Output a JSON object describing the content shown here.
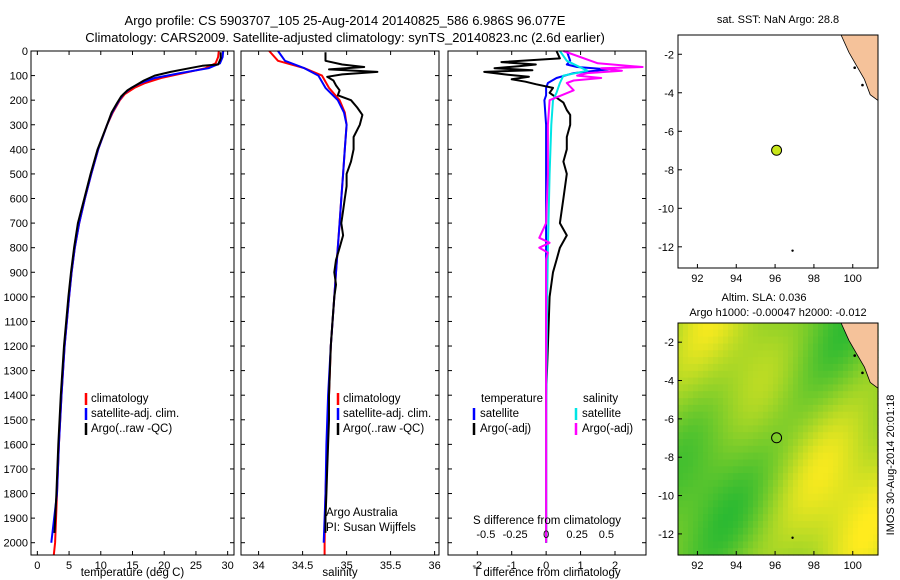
{
  "title": {
    "line1": "Argo profile: CS 5903707_105 25-Aug-2014 20140825_586 6.986S 96.077E",
    "line2": "Climatology: CARS2009. Satellite-adjusted climatology: synTS_20140823.nc (2.6d earlier)"
  },
  "depth_axis": {
    "min": 0,
    "max": 2050,
    "ticks": [
      0,
      100,
      200,
      300,
      400,
      500,
      600,
      700,
      800,
      900,
      1000,
      1100,
      1200,
      1300,
      1400,
      1500,
      1600,
      1700,
      1800,
      1900,
      2000
    ]
  },
  "colors": {
    "climatology": "#ff0000",
    "satellite": "#0000ff",
    "argo": "#000000",
    "salinity_sat": "#00e5e5",
    "salinity_argo": "#ff00ff",
    "land": "#f5c29a"
  },
  "chart_data": [
    {
      "type": "line",
      "name": "temperature-panel",
      "xlabel": "temperature (deg C)",
      "xlim": [
        -1,
        31
      ],
      "xticks": [
        0,
        5,
        10,
        15,
        20,
        25,
        30
      ],
      "ylim": [
        2050,
        0
      ],
      "legend": [
        "climatology",
        "satellite-adj. clim.",
        "Argo(..raw -QC)"
      ],
      "legend_position": "lower-center",
      "series": [
        {
          "name": "climatology",
          "depth": [
            0,
            25,
            50,
            70,
            90,
            110,
            130,
            150,
            175,
            200,
            250,
            300,
            400,
            500,
            600,
            700,
            800,
            900,
            1000,
            1200,
            1400,
            1600,
            1800,
            2000,
            2050
          ],
          "values": [
            28.6,
            28.5,
            28.1,
            26.5,
            23,
            19.5,
            17,
            15.3,
            13.8,
            13,
            11.9,
            11,
            9.6,
            8.5,
            7.5,
            6.6,
            5.9,
            5.4,
            5,
            4.3,
            3.8,
            3.4,
            3.1,
            2.8,
            2.6
          ]
        },
        {
          "name": "satellite-adj. clim.",
          "depth": [
            0,
            25,
            50,
            70,
            90,
            110,
            130,
            150,
            175,
            200,
            250,
            300,
            400,
            500,
            600,
            700,
            800,
            900,
            1000,
            1200,
            1400,
            1600,
            1800,
            2000
          ],
          "values": [
            29.3,
            29.2,
            28.8,
            27,
            22.5,
            18.5,
            16.3,
            14.8,
            13.6,
            12.9,
            11.8,
            11,
            9.6,
            8.5,
            7.5,
            6.6,
            5.9,
            5.4,
            5,
            4.3,
            3.8,
            3.4,
            3.1,
            2.2
          ]
        },
        {
          "name": "Argo(..raw -QC)",
          "depth": [
            5,
            30,
            55,
            60,
            70,
            85,
            100,
            120,
            140,
            160,
            185,
            210,
            250,
            300,
            400,
            500,
            600,
            700,
            800,
            900,
            1000,
            1200,
            1400,
            1600,
            1800,
            1960
          ],
          "values": [
            28.9,
            28.9,
            28.5,
            26,
            24,
            21,
            18.5,
            16.8,
            15.5,
            14.2,
            13.2,
            12.6,
            11.7,
            11,
            9.5,
            8.4,
            7.4,
            6.4,
            5.8,
            5.3,
            4.9,
            4.2,
            3.7,
            3.3,
            3,
            2.7
          ]
        }
      ]
    },
    {
      "type": "line",
      "name": "salinity-panel",
      "xlabel": "salinity",
      "xlim": [
        33.8,
        36.05
      ],
      "xticks": [
        34,
        34.5,
        35,
        35.5,
        36
      ],
      "ylim": [
        2050,
        0
      ],
      "legend": [
        "climatology",
        "satellite-adj. clim.",
        "Argo(..raw -QC)"
      ],
      "legend_position": "lower-right",
      "annotations": [
        "Argo Australia",
        "PI: Susan Wijffels"
      ],
      "series": [
        {
          "name": "climatology",
          "depth": [
            0,
            40,
            70,
            100,
            150,
            200,
            250,
            300,
            400,
            500,
            600,
            700,
            800,
            900,
            1000,
            1200,
            1400,
            1600,
            1800,
            2000,
            2050
          ],
          "values": [
            34.12,
            34.22,
            34.52,
            34.72,
            34.8,
            34.92,
            34.98,
            35.0,
            34.98,
            34.96,
            34.94,
            34.92,
            34.9,
            34.88,
            34.86,
            34.82,
            34.8,
            34.78,
            34.76,
            34.75,
            34.75
          ]
        },
        {
          "name": "satellite-adj. clim.",
          "depth": [
            0,
            40,
            70,
            100,
            150,
            200,
            250,
            300,
            400,
            500,
            600,
            700,
            800,
            900,
            1000,
            1200,
            1400,
            1600,
            1800,
            2000
          ],
          "values": [
            34.22,
            34.3,
            34.52,
            34.68,
            34.76,
            34.9,
            34.97,
            35.0,
            34.98,
            34.96,
            34.94,
            34.92,
            34.9,
            34.88,
            34.86,
            34.82,
            34.79,
            34.77,
            34.76,
            34.74
          ]
        },
        {
          "name": "Argo(..raw -QC)",
          "depth": [
            5,
            40,
            55,
            65,
            75,
            85,
            95,
            105,
            120,
            140,
            160,
            180,
            200,
            230,
            260,
            300,
            350,
            400,
            450,
            500,
            550,
            600,
            650,
            700,
            750,
            800,
            850,
            900,
            950,
            1000,
            1100,
            1200,
            1300,
            1400,
            1500,
            1600,
            1700,
            1800,
            1900,
            1960
          ],
          "values": [
            34.76,
            34.76,
            34.95,
            35.2,
            34.8,
            35.35,
            34.95,
            34.78,
            34.85,
            34.88,
            34.92,
            34.9,
            35.05,
            35.12,
            35.18,
            35.15,
            35.08,
            35.08,
            35.05,
            35.0,
            35.0,
            34.98,
            34.96,
            34.94,
            34.96,
            34.92,
            34.88,
            34.86,
            34.88,
            34.86,
            34.84,
            34.82,
            34.81,
            34.8,
            34.8,
            34.79,
            34.78,
            34.77,
            34.76,
            34.76
          ]
        }
      ]
    },
    {
      "type": "line",
      "name": "difference-panel",
      "xlabel": "T difference from climatology",
      "xlabel_top": "S difference from climatology",
      "xlim": [
        -2.85,
        2.9
      ],
      "xticks": [
        -2,
        -1,
        0,
        1,
        2
      ],
      "xtick_labels_s": [
        "-0.5",
        "-0.25",
        "0",
        "0.25",
        "0.5"
      ],
      "ylim": [
        2050,
        0
      ],
      "legend": [
        "temperature",
        "satellite",
        "Argo(-adj)",
        "salinity",
        "satellite",
        "Argo(-adj)"
      ],
      "legend_position": "lower-center",
      "series": [
        {
          "name": "temperature satellite",
          "depth": [
            0,
            40,
            55,
            65,
            75,
            90,
            110,
            130,
            150,
            180,
            200,
            300,
            500,
            1000,
            2000
          ],
          "values": [
            0.6,
            0.7,
            0.6,
            0.9,
            1.8,
            0.8,
            0.3,
            0.05,
            0,
            0,
            -0.05,
            0,
            0,
            0,
            0
          ]
        },
        {
          "name": "temperature Argo(-adj)",
          "depth": [
            0,
            30,
            45,
            55,
            62,
            70,
            78,
            85,
            95,
            105,
            115,
            125,
            135,
            150,
            170,
            190,
            210,
            240,
            260,
            300,
            350,
            400,
            450,
            500,
            600,
            700,
            750,
            800,
            850,
            900,
            1000,
            1200,
            1400,
            1600,
            1800,
            2000
          ],
          "values": [
            0.3,
            0.4,
            -1.3,
            -0.3,
            -0.8,
            -1.5,
            -0.4,
            -1.8,
            -1.2,
            -0.5,
            -1,
            -0.6,
            -0.3,
            0.2,
            0.1,
            0.3,
            0.5,
            0.6,
            0.7,
            0.7,
            0.6,
            0.6,
            0.5,
            0.6,
            0.5,
            0.4,
            0.6,
            0.4,
            0.3,
            0.2,
            0.1,
            0.05,
            0,
            0,
            0,
            0
          ]
        },
        {
          "name": "salinity satellite",
          "depth": [
            0,
            40,
            60,
            80,
            100,
            130,
            170,
            200,
            300,
            500,
            800,
            1000,
            1500,
            2000
          ],
          "values": [
            0.4,
            0.6,
            0.9,
            1.2,
            0.5,
            0.4,
            0.3,
            0.2,
            0.15,
            0.1,
            0.05,
            0.03,
            0,
            0
          ]
        },
        {
          "name": "salinity Argo(-adj)",
          "depth": [
            0,
            50,
            65,
            70,
            80,
            90,
            100,
            110,
            120,
            130,
            160,
            200,
            300,
            400,
            500,
            700,
            760,
            780,
            800,
            820,
            850,
            900,
            1000,
            1200,
            1500,
            2000
          ],
          "values": [
            0.5,
            1.5,
            2.8,
            1.6,
            2.2,
            1.2,
            0.9,
            1.6,
            0.8,
            0.6,
            0.8,
            0.1,
            0.05,
            0.05,
            0.05,
            0,
            -0.2,
            0.1,
            -0.2,
            0.05,
            0,
            0,
            0,
            0,
            0,
            0
          ]
        }
      ]
    }
  ],
  "map_top": {
    "title": "sat. SST: NaN Argo: 28.8",
    "xticks": [
      92,
      94,
      96,
      98,
      100
    ],
    "yticks": [
      -2,
      -4,
      -6,
      -8,
      -10,
      -12
    ],
    "xlim": [
      91,
      101.3
    ],
    "ylim": [
      -13.1,
      -1
    ],
    "argo_position": [
      96.077,
      -6.986
    ],
    "marker_color": "#c8e619"
  },
  "map_bottom": {
    "title1": "Altim. SLA: 0.036",
    "title2": "Argo h1000: -0.00047 h2000: -0.012",
    "xticks": [
      92,
      94,
      96,
      98,
      100
    ],
    "yticks": [
      -2,
      -4,
      -6,
      -8,
      -10,
      -12
    ],
    "xlim": [
      91,
      101.3
    ],
    "ylim": [
      -13.1,
      -1
    ],
    "argo_position": [
      96.077,
      -6.986
    ]
  },
  "footer_stamp": "IMOS 30-Aug-2014 20:01:18"
}
